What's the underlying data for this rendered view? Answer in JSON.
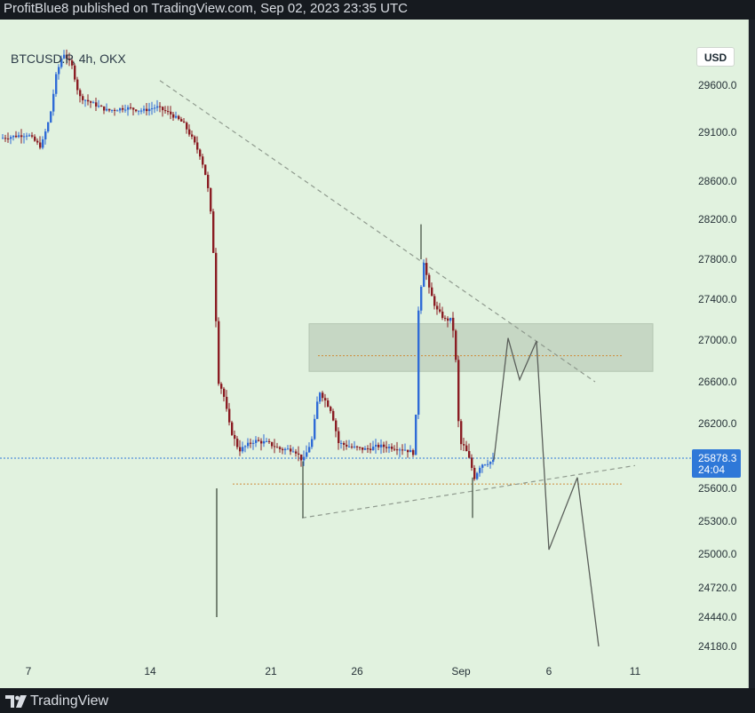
{
  "header": {
    "text": "ProfitBlue8 published on TradingView.com, Sep 02, 2023 23:35 UTC"
  },
  "symbol_label": "BTCUSD.P, 4h, OKX",
  "currency_button": "USD",
  "footer": {
    "brand": "TradingView",
    "logo_icon": "tradingview-logo-icon"
  },
  "chart_data": {
    "type": "candlestick",
    "x_ticks": [
      "7",
      "14",
      "21",
      "26",
      "Sep",
      "6",
      "11"
    ],
    "y_ticks": [
      "29600.0",
      "29100.0",
      "28600.0",
      "28200.0",
      "27800.0",
      "27400.0",
      "27000.0",
      "26600.0",
      "26200.0",
      "25600.0",
      "25300.0",
      "25000.0",
      "24720.0",
      "24440.0",
      "24180.0"
    ],
    "last_price": {
      "value": "25878.3",
      "countdown": "24:04"
    },
    "price_path": [
      {
        "x": 0,
        "y": 29040
      },
      {
        "x": 30,
        "y": 29080
      },
      {
        "x": 45,
        "y": 28950
      },
      {
        "x": 55,
        "y": 29260
      },
      {
        "x": 62,
        "y": 29700
      },
      {
        "x": 70,
        "y": 29950
      },
      {
        "x": 80,
        "y": 29800
      },
      {
        "x": 88,
        "y": 29480
      },
      {
        "x": 100,
        "y": 29420
      },
      {
        "x": 120,
        "y": 29330
      },
      {
        "x": 140,
        "y": 29360
      },
      {
        "x": 160,
        "y": 29330
      },
      {
        "x": 175,
        "y": 29370
      },
      {
        "x": 190,
        "y": 29300
      },
      {
        "x": 205,
        "y": 29200
      },
      {
        "x": 215,
        "y": 29040
      },
      {
        "x": 225,
        "y": 28850
      },
      {
        "x": 232,
        "y": 28600
      },
      {
        "x": 238,
        "y": 28100
      },
      {
        "x": 242,
        "y": 27200
      },
      {
        "x": 245,
        "y": 26600
      },
      {
        "x": 250,
        "y": 26500
      },
      {
        "x": 258,
        "y": 26150
      },
      {
        "x": 268,
        "y": 25950
      },
      {
        "x": 285,
        "y": 26040
      },
      {
        "x": 300,
        "y": 26020
      },
      {
        "x": 315,
        "y": 25960
      },
      {
        "x": 330,
        "y": 25960
      },
      {
        "x": 340,
        "y": 25850
      },
      {
        "x": 350,
        "y": 26050
      },
      {
        "x": 358,
        "y": 26520
      },
      {
        "x": 365,
        "y": 26420
      },
      {
        "x": 372,
        "y": 26320
      },
      {
        "x": 380,
        "y": 26020
      },
      {
        "x": 395,
        "y": 25980
      },
      {
        "x": 410,
        "y": 25960
      },
      {
        "x": 425,
        "y": 25990
      },
      {
        "x": 440,
        "y": 25980
      },
      {
        "x": 455,
        "y": 25960
      },
      {
        "x": 466,
        "y": 25920
      },
      {
        "x": 470,
        "y": 27300
      },
      {
        "x": 476,
        "y": 27780
      },
      {
        "x": 482,
        "y": 27500
      },
      {
        "x": 490,
        "y": 27300
      },
      {
        "x": 500,
        "y": 27200
      },
      {
        "x": 508,
        "y": 27200
      },
      {
        "x": 512,
        "y": 26800
      },
      {
        "x": 516,
        "y": 26020
      },
      {
        "x": 522,
        "y": 25980
      },
      {
        "x": 528,
        "y": 25850
      },
      {
        "x": 533,
        "y": 25700
      },
      {
        "x": 540,
        "y": 25820
      },
      {
        "x": 548,
        "y": 25840
      },
      {
        "x": 555,
        "y": 25850
      }
    ],
    "projection": [
      {
        "x": 556,
        "y": 25860
      },
      {
        "x": 572,
        "y": 27020
      },
      {
        "x": 585,
        "y": 26620
      },
      {
        "x": 604,
        "y": 26990
      },
      {
        "x": 618,
        "y": 25040
      },
      {
        "x": 650,
        "y": 25700
      },
      {
        "x": 674,
        "y": 24180
      }
    ],
    "descending_trendline": {
      "from": {
        "x": 180,
        "y": 29650
      },
      "to": {
        "x": 670,
        "y": 26600
      }
    },
    "ascending_trendline": {
      "from": {
        "x": 340,
        "y": 25330
      },
      "to": {
        "x": 715,
        "y": 25810
      }
    },
    "resistance_zone": {
      "x_from": 348,
      "x_to": 735,
      "y_from": 26700,
      "y_to": 27160
    },
    "level_lines": [
      {
        "x_from": 358,
        "x_to": 700,
        "y": 26850
      },
      {
        "x_from": 262,
        "x_to": 700,
        "y": 25640
      }
    ],
    "colors": {
      "bullish": "#2f6bd6",
      "bearish": "#8a1d23",
      "background": "#e1f2df",
      "last_price": "#2f78d8",
      "level": "#d08a3a",
      "projection": "#5a5f5a"
    }
  }
}
